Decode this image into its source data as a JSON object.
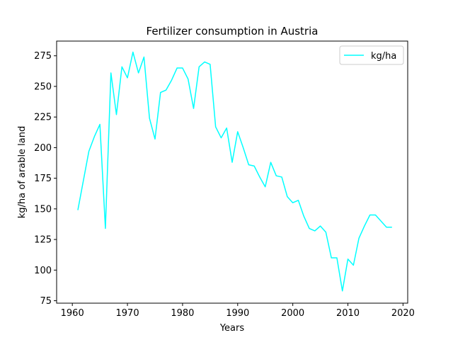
{
  "chart_data": {
    "type": "line",
    "title": "Fertilizer consumption in Austria",
    "xlabel": "Years",
    "ylabel": "kg/ha of arable land",
    "xlim": [
      1957.15,
      2020.85
    ],
    "ylim": [
      73.0,
      287.0
    ],
    "xticks": [
      1960,
      1970,
      1980,
      1990,
      2000,
      2010,
      2020
    ],
    "yticks": [
      75,
      100,
      125,
      150,
      175,
      200,
      225,
      250,
      275
    ],
    "grid": false,
    "legend_position": "top-right",
    "series": [
      {
        "name": "kg/ha",
        "color": "#00ffff",
        "x": [
          1961,
          1962,
          1963,
          1964,
          1965,
          1966,
          1967,
          1968,
          1969,
          1970,
          1971,
          1972,
          1973,
          1974,
          1975,
          1976,
          1977,
          1978,
          1979,
          1980,
          1981,
          1982,
          1983,
          1984,
          1985,
          1986,
          1987,
          1988,
          1989,
          1990,
          1991,
          1992,
          1993,
          1994,
          1995,
          1996,
          1997,
          1998,
          1999,
          2000,
          2001,
          2002,
          2003,
          2004,
          2005,
          2006,
          2007,
          2008,
          2009,
          2010,
          2011,
          2012,
          2013,
          2014,
          2015,
          2016,
          2017,
          2018
        ],
        "y": [
          149,
          173,
          197,
          209,
          219,
          134,
          261,
          227,
          266,
          257,
          278,
          261,
          274,
          224,
          207,
          245,
          247,
          255,
          265,
          265,
          256,
          232,
          266,
          270,
          268,
          217,
          208,
          216,
          188,
          213,
          200,
          186,
          185,
          176,
          168,
          188,
          177,
          176,
          160,
          155,
          157,
          144,
          134,
          132,
          136,
          131,
          110,
          110,
          83,
          109,
          104,
          126,
          136,
          145,
          145,
          140,
          135,
          135
        ]
      }
    ]
  }
}
